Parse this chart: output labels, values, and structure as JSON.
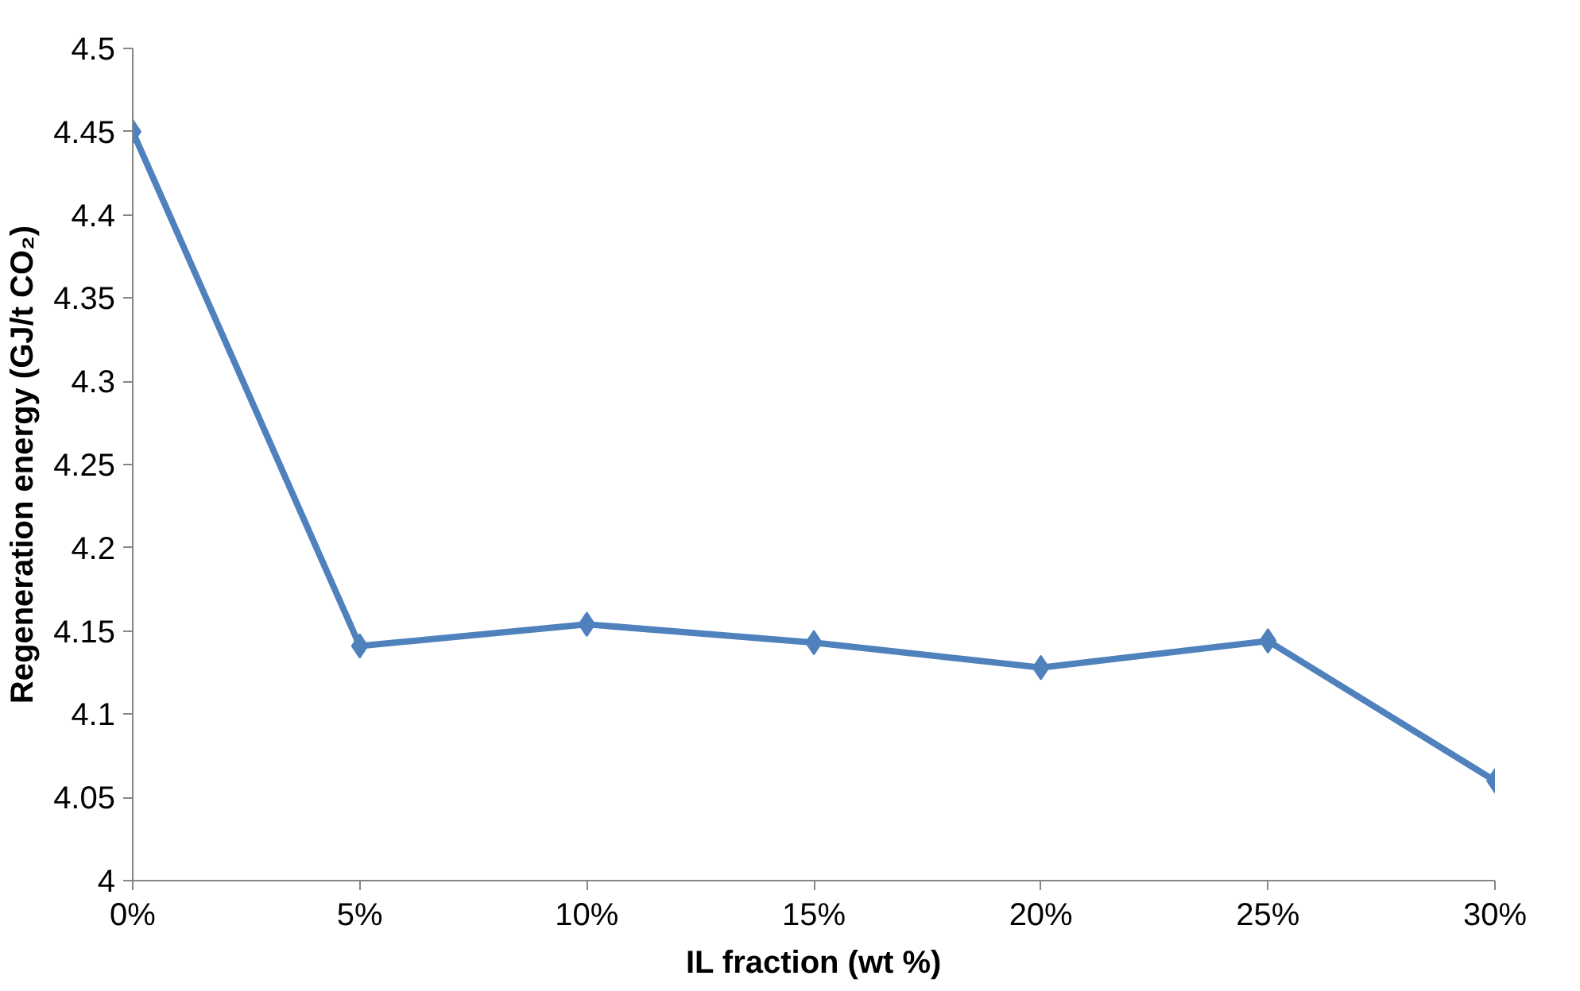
{
  "chart_data": {
    "type": "line",
    "xlabel": "IL fraction (wt %)",
    "ylabel": "Regeneration energy (GJ/t CO₂)",
    "categories": [
      "0%",
      "5%",
      "10%",
      "15%",
      "20%",
      "25%",
      "30%"
    ],
    "series": [
      {
        "color": "#4f81bd",
        "values": [
          4.45,
          4.141,
          4.154,
          4.143,
          4.128,
          4.144,
          4.06
        ]
      }
    ],
    "ylim": [
      4,
      4.5
    ],
    "yticks": [
      4,
      4.05,
      4.1,
      4.15,
      4.2,
      4.25,
      4.3,
      4.35,
      4.4,
      4.45,
      4.5
    ],
    "grid": false,
    "marker": "diamond",
    "line_style": "solid"
  }
}
